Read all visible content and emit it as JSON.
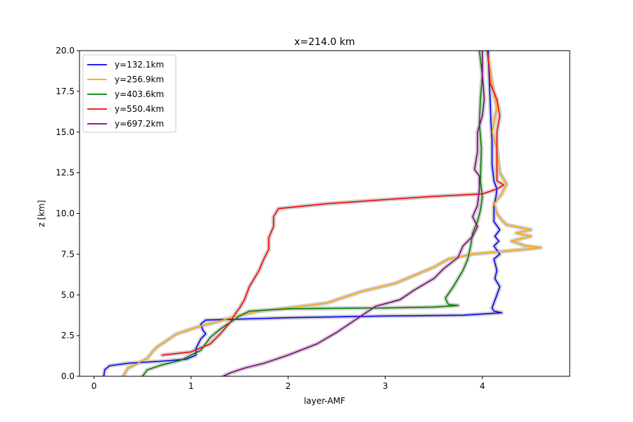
{
  "chart_data": {
    "type": "line",
    "title": "x=214.0 km",
    "xlabel": "layer-AMF",
    "ylabel": "z [km]",
    "xlim": [
      -0.15,
      4.9
    ],
    "ylim": [
      0,
      20
    ],
    "xticks": [
      0,
      1,
      2,
      3,
      4
    ],
    "xtick_labels": [
      "0",
      "1",
      "2",
      "3",
      "4"
    ],
    "yticks": [
      0,
      2.5,
      5,
      7.5,
      10,
      12.5,
      15,
      17.5,
      20
    ],
    "ytick_labels": [
      "0.0",
      "2.5",
      "5.0",
      "7.5",
      "10.0",
      "12.5",
      "15.0",
      "17.5",
      "20.0"
    ],
    "grid": false,
    "legend_position": "top-left",
    "uncertainty_band_color": "#c8c8c8",
    "series": [
      {
        "name": "y=132.1km",
        "color": "#0000ff",
        "points": [
          [
            0.1,
            0
          ],
          [
            0.11,
            0.4
          ],
          [
            0.16,
            0.65
          ],
          [
            0.35,
            0.8
          ],
          [
            0.75,
            0.95
          ],
          [
            0.95,
            1.05
          ],
          [
            1.05,
            1.3
          ],
          [
            1.05,
            1.7
          ],
          [
            1.1,
            2.3
          ],
          [
            1.15,
            2.6
          ],
          [
            1.12,
            2.85
          ],
          [
            1.1,
            3.2
          ],
          [
            1.15,
            3.45
          ],
          [
            2.0,
            3.6
          ],
          [
            3.0,
            3.7
          ],
          [
            3.8,
            3.75
          ],
          [
            4.2,
            3.9
          ],
          [
            4.12,
            4.0
          ],
          [
            4.1,
            4.2
          ],
          [
            4.15,
            5.0
          ],
          [
            4.18,
            5.5
          ],
          [
            4.13,
            6.0
          ],
          [
            4.15,
            6.5
          ],
          [
            4.12,
            7.2
          ],
          [
            4.18,
            7.5
          ],
          [
            4.12,
            8.0
          ],
          [
            4.17,
            8.3
          ],
          [
            4.13,
            8.6
          ],
          [
            4.18,
            9.0
          ],
          [
            4.12,
            9.5
          ],
          [
            4.12,
            10.5
          ],
          [
            4.14,
            11.0
          ],
          [
            4.15,
            11.5
          ],
          [
            4.12,
            12.0
          ],
          [
            4.1,
            13.0
          ],
          [
            4.1,
            14.5
          ],
          [
            4.09,
            15.5
          ],
          [
            4.08,
            17.0
          ],
          [
            4.07,
            18.5
          ],
          [
            4.06,
            20.0
          ]
        ]
      },
      {
        "name": "y=256.9km",
        "color": "#ffa500",
        "points": [
          [
            0.3,
            0
          ],
          [
            0.35,
            0.5
          ],
          [
            0.45,
            0.8
          ],
          [
            0.55,
            1.1
          ],
          [
            0.6,
            1.5
          ],
          [
            0.65,
            1.8
          ],
          [
            0.75,
            2.2
          ],
          [
            0.85,
            2.6
          ],
          [
            1.05,
            3.0
          ],
          [
            1.3,
            3.4
          ],
          [
            1.5,
            3.75
          ],
          [
            1.7,
            4.0
          ],
          [
            2.0,
            4.2
          ],
          [
            2.4,
            4.5
          ],
          [
            2.75,
            5.2
          ],
          [
            3.1,
            5.7
          ],
          [
            3.3,
            6.2
          ],
          [
            3.5,
            6.7
          ],
          [
            3.65,
            7.2
          ],
          [
            3.9,
            7.5
          ],
          [
            4.45,
            7.8
          ],
          [
            4.6,
            7.9
          ],
          [
            4.45,
            8.0
          ],
          [
            4.3,
            8.3
          ],
          [
            4.5,
            8.6
          ],
          [
            4.35,
            8.8
          ],
          [
            4.5,
            9.0
          ],
          [
            4.25,
            9.3
          ],
          [
            4.2,
            9.6
          ],
          [
            4.15,
            10.0
          ],
          [
            4.12,
            10.6
          ],
          [
            4.2,
            11.2
          ],
          [
            4.25,
            11.8
          ],
          [
            4.18,
            12.5
          ],
          [
            4.15,
            14.0
          ],
          [
            4.1,
            15.0
          ],
          [
            4.15,
            16.5
          ],
          [
            4.1,
            18.0
          ],
          [
            4.05,
            20.0
          ]
        ]
      },
      {
        "name": "y=403.6km",
        "color": "#008000",
        "points": [
          [
            0.5,
            0
          ],
          [
            0.55,
            0.4
          ],
          [
            0.7,
            0.7
          ],
          [
            0.9,
            1.0
          ],
          [
            1.0,
            1.3
          ],
          [
            1.1,
            1.6
          ],
          [
            1.15,
            2.0
          ],
          [
            1.2,
            2.4
          ],
          [
            1.3,
            2.9
          ],
          [
            1.4,
            3.3
          ],
          [
            1.5,
            3.7
          ],
          [
            1.6,
            4.0
          ],
          [
            2.0,
            4.15
          ],
          [
            3.0,
            4.2
          ],
          [
            3.5,
            4.25
          ],
          [
            3.75,
            4.35
          ],
          [
            3.65,
            4.4
          ],
          [
            3.62,
            4.8
          ],
          [
            3.7,
            5.5
          ],
          [
            3.8,
            6.5
          ],
          [
            3.85,
            7.2
          ],
          [
            3.88,
            8.0
          ],
          [
            3.9,
            8.8
          ],
          [
            3.95,
            9.5
          ],
          [
            3.98,
            10.2
          ],
          [
            4.0,
            11.0
          ],
          [
            3.98,
            12.0
          ],
          [
            3.99,
            14.0
          ],
          [
            3.97,
            15.5
          ],
          [
            3.98,
            17.0
          ],
          [
            4.0,
            18.5
          ],
          [
            3.97,
            20.0
          ]
        ]
      },
      {
        "name": "y=550.4km",
        "color": "#ff0000",
        "points": [
          [
            0.7,
            1.3
          ],
          [
            1.0,
            1.5
          ],
          [
            1.2,
            2.0
          ],
          [
            1.3,
            2.6
          ],
          [
            1.4,
            3.3
          ],
          [
            1.45,
            3.8
          ],
          [
            1.5,
            4.2
          ],
          [
            1.55,
            4.7
          ],
          [
            1.6,
            5.5
          ],
          [
            1.7,
            6.5
          ],
          [
            1.75,
            7.2
          ],
          [
            1.8,
            7.8
          ],
          [
            1.8,
            8.5
          ],
          [
            1.85,
            9.2
          ],
          [
            1.85,
            9.8
          ],
          [
            1.9,
            10.3
          ],
          [
            2.4,
            10.6
          ],
          [
            3.0,
            10.85
          ],
          [
            3.5,
            11.05
          ],
          [
            4.0,
            11.2
          ],
          [
            4.15,
            11.5
          ],
          [
            4.22,
            11.75
          ],
          [
            4.15,
            12.0
          ],
          [
            4.15,
            13.0
          ],
          [
            4.15,
            14.0
          ],
          [
            4.15,
            15.0
          ],
          [
            4.18,
            16.0
          ],
          [
            4.15,
            17.0
          ],
          [
            4.08,
            18.0
          ],
          [
            4.07,
            19.0
          ],
          [
            4.05,
            20.0
          ]
        ]
      },
      {
        "name": "y=697.2km",
        "color": "#800080",
        "points": [
          [
            1.33,
            0
          ],
          [
            1.4,
            0.2
          ],
          [
            1.55,
            0.5
          ],
          [
            1.75,
            0.8
          ],
          [
            2.0,
            1.3
          ],
          [
            2.3,
            2.0
          ],
          [
            2.5,
            2.7
          ],
          [
            2.7,
            3.5
          ],
          [
            2.9,
            4.3
          ],
          [
            3.15,
            4.7
          ],
          [
            3.3,
            5.3
          ],
          [
            3.5,
            6.0
          ],
          [
            3.6,
            6.6
          ],
          [
            3.75,
            7.3
          ],
          [
            3.8,
            8.0
          ],
          [
            3.9,
            8.6
          ],
          [
            3.95,
            9.2
          ],
          [
            3.9,
            9.8
          ],
          [
            3.95,
            10.5
          ],
          [
            3.97,
            11.5
          ],
          [
            3.97,
            12.3
          ],
          [
            3.92,
            12.7
          ],
          [
            3.95,
            13.8
          ],
          [
            3.95,
            15.0
          ],
          [
            4.0,
            16.0
          ],
          [
            4.02,
            17.0
          ],
          [
            4.0,
            18.5
          ],
          [
            4.0,
            20.0
          ]
        ]
      }
    ]
  }
}
